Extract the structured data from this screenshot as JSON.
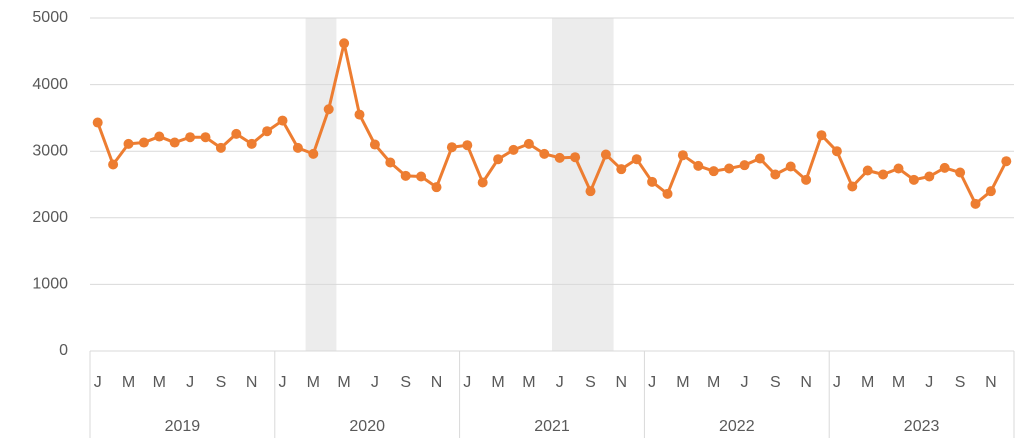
{
  "chart_data": {
    "type": "line",
    "categories": [
      "J",
      null,
      "M",
      null,
      "M",
      null,
      "J",
      null,
      "S",
      null,
      "N",
      null,
      "J",
      null,
      "M",
      null,
      "M",
      null,
      "J",
      null,
      "S",
      null,
      "N",
      null,
      "J",
      null,
      "M",
      null,
      "M",
      null,
      "J",
      null,
      "S",
      null,
      "N",
      null,
      "J",
      null,
      "M",
      null,
      "M",
      null,
      "J",
      null,
      "S",
      null,
      "N",
      null,
      "J",
      null,
      "M",
      null,
      "M",
      null,
      "J",
      null,
      "S",
      null,
      "N",
      null
    ],
    "years": [
      "2019",
      "2020",
      "2021",
      "2022",
      "2023"
    ],
    "series": [
      {
        "color": "#ed7d31",
        "values": [
          3430,
          2800,
          3110,
          3130,
          3220,
          3130,
          3210,
          3210,
          3050,
          3260,
          3110,
          3300,
          3460,
          3050,
          2960,
          3630,
          4620,
          3550,
          3100,
          2830,
          2630,
          2620,
          2460,
          3060,
          3090,
          2530,
          2880,
          3020,
          3110,
          2960,
          2900,
          2910,
          2400,
          2950,
          2730,
          2880,
          2540,
          2360,
          2940,
          2780,
          2700,
          2740,
          2790,
          2890,
          2650,
          2770,
          2570,
          3240,
          3000,
          2470,
          2710,
          2650,
          2740,
          2570,
          2620,
          2750,
          2680,
          2210,
          2400,
          2850
        ]
      }
    ],
    "shaded": [
      {
        "start": 14,
        "end": 15
      },
      {
        "start": 30,
        "end": 33
      }
    ],
    "shade_color": "#ececec",
    "ylim": [
      0,
      5000
    ],
    "yticks": [
      0,
      1000,
      2000,
      3000,
      4000,
      5000
    ],
    "grid": true
  }
}
